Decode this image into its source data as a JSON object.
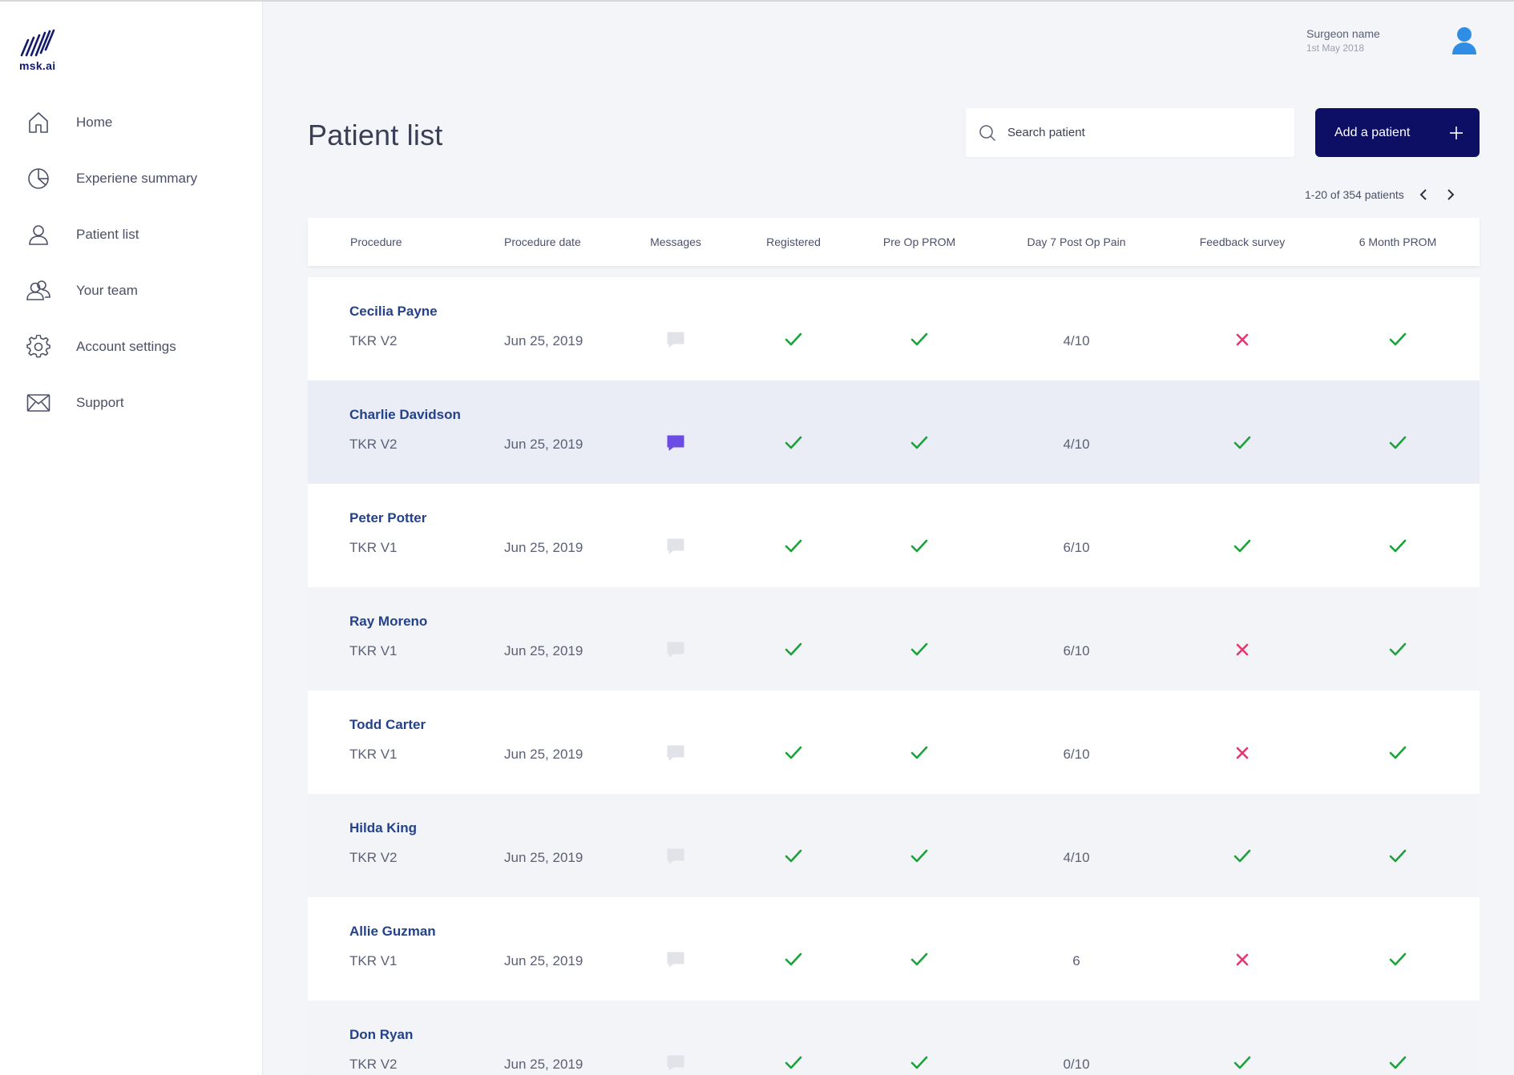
{
  "app": {
    "logo_text": "msk.ai"
  },
  "nav": [
    {
      "label": "Home",
      "icon": "home-icon"
    },
    {
      "label": "Experiene summary",
      "icon": "pie-chart-icon"
    },
    {
      "label": "Patient list",
      "icon": "user-icon"
    },
    {
      "label": "Your team",
      "icon": "team-icon"
    },
    {
      "label": "Account settings",
      "icon": "gear-icon"
    },
    {
      "label": "Support",
      "icon": "mail-icon"
    }
  ],
  "user": {
    "name": "Surgeon name",
    "date": "1st May 2018"
  },
  "page": {
    "title": "Patient list"
  },
  "search": {
    "placeholder": "Search patient"
  },
  "add_button": {
    "label": "Add a patient"
  },
  "pagination": {
    "text": "1-20 of 354 patients"
  },
  "table": {
    "columns": [
      "Procedure",
      "Procedure date",
      "Messages",
      "Registered",
      "Pre Op PROM",
      "Day 7 Post Op Pain",
      "Feedback survey",
      "6 Month PROM"
    ],
    "rows": [
      {
        "name": "Cecilia Payne",
        "procedure": "TKR V2",
        "date": "Jun 25, 2019",
        "message": false,
        "registered": true,
        "preop": true,
        "pain": "4/10",
        "feedback": false,
        "six_month": true
      },
      {
        "name": "Charlie Davidson",
        "procedure": "TKR V2",
        "date": "Jun 25, 2019",
        "message": true,
        "registered": true,
        "preop": true,
        "pain": "4/10",
        "feedback": true,
        "six_month": true
      },
      {
        "name": "Peter Potter",
        "procedure": "TKR V1",
        "date": "Jun 25, 2019",
        "message": false,
        "registered": true,
        "preop": true,
        "pain": "6/10",
        "feedback": true,
        "six_month": true
      },
      {
        "name": "Ray Moreno",
        "procedure": "TKR V1",
        "date": "Jun 25, 2019",
        "message": false,
        "registered": true,
        "preop": true,
        "pain": "6/10",
        "feedback": false,
        "six_month": true
      },
      {
        "name": "Todd Carter",
        "procedure": "TKR V1",
        "date": "Jun 25, 2019",
        "message": false,
        "registered": true,
        "preop": true,
        "pain": "6/10",
        "feedback": false,
        "six_month": true
      },
      {
        "name": "Hilda King",
        "procedure": "TKR V2",
        "date": "Jun 25, 2019",
        "message": false,
        "registered": true,
        "preop": true,
        "pain": "4/10",
        "feedback": true,
        "six_month": true
      },
      {
        "name": "Allie Guzman",
        "procedure": "TKR V1",
        "date": "Jun 25, 2019",
        "message": false,
        "registered": true,
        "preop": true,
        "pain": "6",
        "feedback": false,
        "six_month": true
      },
      {
        "name": "Don Ryan",
        "procedure": "TKR V2",
        "date": "Jun 25, 2019",
        "message": false,
        "registered": true,
        "preop": true,
        "pain": "0/10",
        "feedback": true,
        "six_month": true
      }
    ]
  },
  "colors": {
    "accent": "#0c0f63",
    "check": "#1aa33a",
    "cross": "#e8356d",
    "message_active": "#6b4de6",
    "message_inactive": "#e2e3e8",
    "link": "#24428a"
  }
}
